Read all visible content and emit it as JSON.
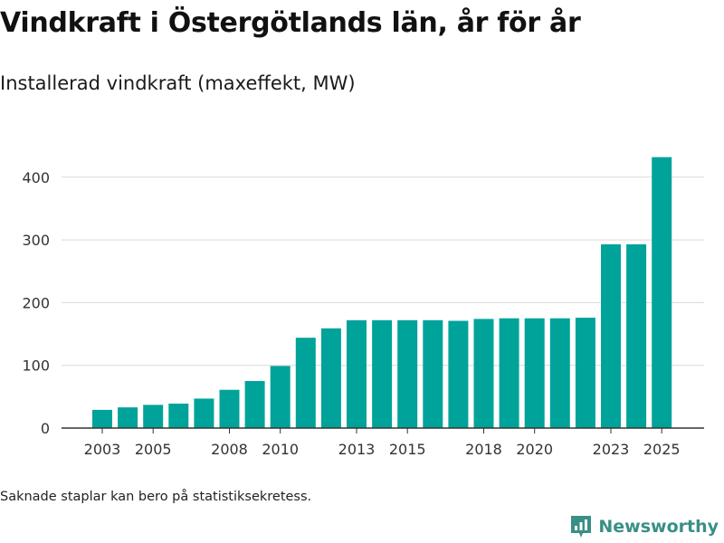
{
  "page": {
    "title": "Vindkraft i Östergötlands län, år för år",
    "subtitle": "Installerad vindkraft (maxeffekt, MW)",
    "footnote": "Saknade staplar kan bero på statistiksekretess.",
    "brand": "Newsworthy"
  },
  "colors": {
    "bar": "#00a39a",
    "grid": "#d9d9d9",
    "axis": "#333333",
    "brand": "#3a8f86"
  },
  "chart_data": {
    "type": "bar",
    "title": "Vindkraft i Östergötlands län, år för år",
    "subtitle": "Installerad vindkraft (maxeffekt, MW)",
    "xlabel": "",
    "ylabel": "",
    "categories": [
      2003,
      2004,
      2005,
      2006,
      2007,
      2008,
      2009,
      2010,
      2011,
      2012,
      2013,
      2014,
      2015,
      2016,
      2017,
      2018,
      2019,
      2020,
      2021,
      2022,
      2023,
      2024,
      2025
    ],
    "values": [
      29,
      33,
      37,
      39,
      47,
      61,
      75,
      99,
      144,
      159,
      172,
      172,
      172,
      172,
      171,
      174,
      175,
      175,
      175,
      176,
      293,
      293,
      432
    ],
    "x_tick_labels": [
      "2003",
      "2005",
      "2008",
      "2010",
      "2013",
      "2015",
      "2018",
      "2020",
      "2023",
      "2025"
    ],
    "y_ticks": [
      0,
      100,
      200,
      300,
      400
    ],
    "ylim": [
      0,
      460
    ],
    "grid": true
  }
}
